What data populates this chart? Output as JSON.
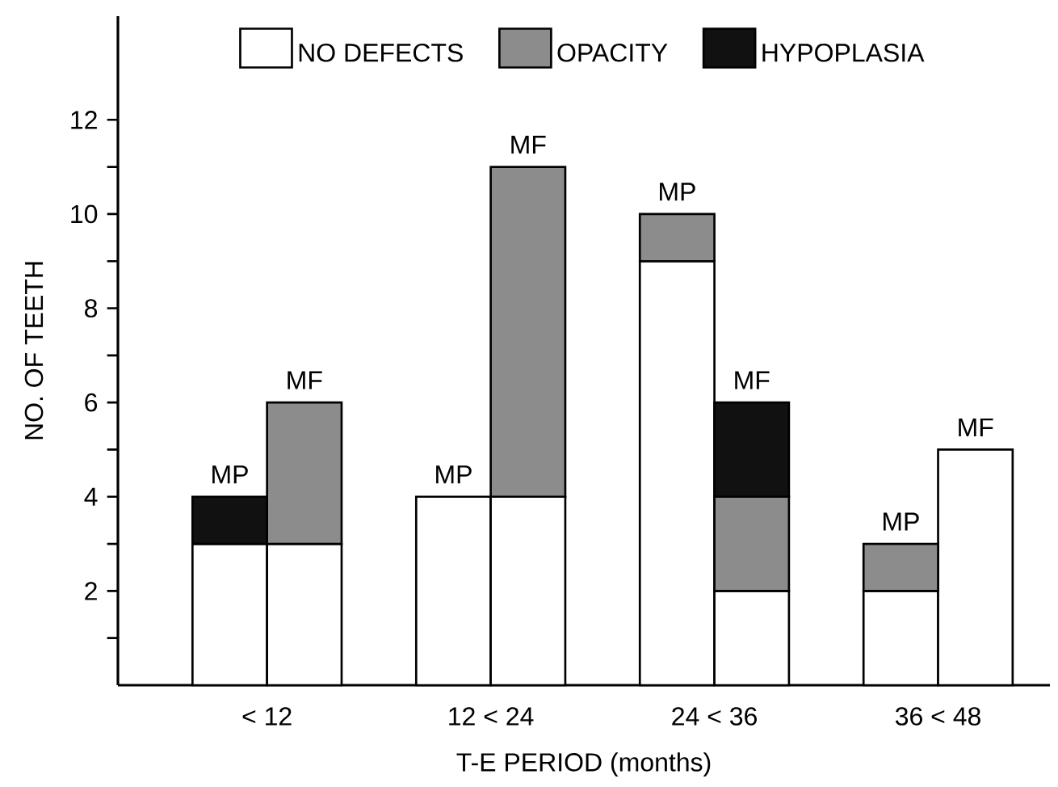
{
  "chart_data": {
    "type": "bar",
    "stacked": true,
    "xlabel": "T-E PERIOD   (months)",
    "ylabel": "NO. OF TEETH",
    "categories": [
      "MP",
      "MF",
      "MP",
      "MF",
      "MP",
      "MF",
      "MP",
      "MF"
    ],
    "ylim": [
      0,
      14.2
    ],
    "yticks": [
      {
        "value": 1,
        "label": null
      },
      2,
      {
        "value": 3,
        "label": null
      },
      4,
      {
        "value": 5,
        "label": null
      },
      6,
      {
        "value": 7,
        "label": null
      },
      8,
      {
        "value": 9,
        "label": null
      },
      10,
      {
        "value": 11,
        "label": null
      },
      12
    ],
    "series": [
      {
        "name": "NO DEFECTS",
        "color": "#ffffff",
        "values": [
          3,
          3,
          4,
          4,
          9,
          2,
          2,
          5
        ]
      },
      {
        "name": "OPACITY",
        "color": "#8c8c8c",
        "values": [
          0,
          3,
          0,
          7,
          1,
          2,
          1,
          0
        ]
      },
      {
        "name": "HYPOPLASIA",
        "color": "#111111",
        "values": [
          1,
          0,
          0,
          0,
          0,
          2,
          0,
          0
        ]
      }
    ],
    "annotations": [
      "< 12",
      "12 < 24",
      "24 < 36",
      "36 < 48"
    ],
    "legend": "top"
  }
}
